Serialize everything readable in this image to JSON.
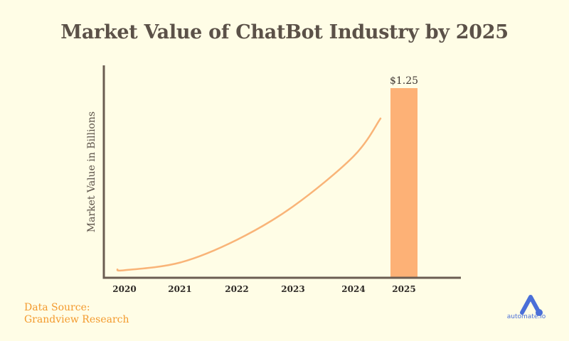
{
  "chart_data": {
    "type": "line",
    "title": "Market Value of ChatBot Industry by 2025",
    "ylabel": "Market Value in  Billions",
    "xlabel": "",
    "categories": [
      "2020",
      "2021",
      "2022",
      "2023",
      "2024",
      "2025"
    ],
    "series": [
      {
        "kind": "line",
        "values": [
          0.05,
          0.1,
          0.25,
          0.47,
          0.8,
          null
        ]
      },
      {
        "kind": "bar",
        "values": [
          null,
          null,
          null,
          null,
          null,
          1.25
        ]
      }
    ],
    "data_labels": {
      "2025": "$1.25"
    },
    "ylim": [
      0,
      1.4
    ],
    "grid": false,
    "colors": {
      "axis": "#6b5d52",
      "line": "#f9b478",
      "bar": "#fdb176",
      "text": "#5b5148"
    }
  },
  "source": {
    "line1": "Data Source:",
    "line2": "Grandview Research",
    "color": "#f39a2d"
  },
  "brand": {
    "name": "automate.io",
    "color": "#4a6fd8",
    "icon": "automate-logo-icon"
  }
}
